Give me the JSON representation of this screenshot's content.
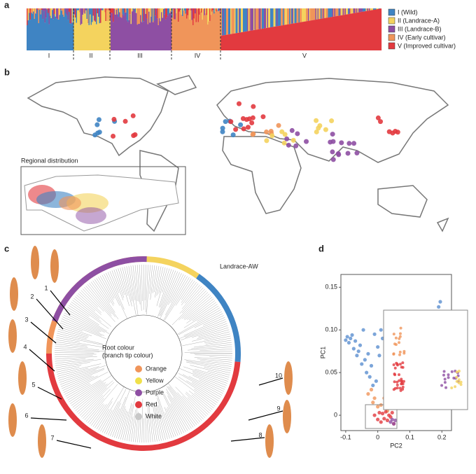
{
  "figure": {
    "a": {
      "label": "a",
      "groups": [
        "I",
        "II",
        "III",
        "IV",
        "V"
      ],
      "legend": [
        "I (Wild)",
        "II (Landrace-A)",
        "III (Landrace-B)",
        "IV (Early cultivar)",
        "V (Improved cultivar)"
      ],
      "colors": [
        "#3f84c3",
        "#f4d35e",
        "#8e4fa3",
        "#f0955a",
        "#e23a3f"
      ]
    },
    "b": {
      "label": "b",
      "inset_title": "Regional distribution"
    },
    "c": {
      "label": "c",
      "clade_label": "Landrace-AW",
      "legend_title": [
        "Root colour",
        "(branch tip colour)"
      ],
      "legend": [
        "Orange",
        "Yellow",
        "Purple",
        "Red",
        "White"
      ],
      "legend_colors": [
        "#f0955a",
        "#f0e04a",
        "#8e4fa3",
        "#e23a3f",
        "#c8c8c8"
      ],
      "markers": [
        "1",
        "2",
        "3",
        "4",
        "5",
        "6",
        "7",
        "8",
        "9",
        "10"
      ]
    },
    "d": {
      "label": "d"
    }
  },
  "chart_data": {
    "type": "scatter",
    "x_label": "PC2",
    "y_label": "PC1",
    "xlim": [
      -0.115,
      0.23
    ],
    "ylim": [
      -0.018,
      0.165
    ],
    "xticks": [
      -0.1,
      0,
      0.1,
      0.2
    ],
    "yticks": [
      0,
      0.05,
      {
        "value": 0.1,
        "label": "0.10"
      },
      0.15
    ],
    "series": [
      {
        "color": "#5b8fd0",
        "x": [
          -0.1,
          -0.095,
          -0.09,
          -0.085,
          -0.08,
          -0.075,
          -0.07,
          -0.065,
          -0.06,
          -0.055,
          -0.05,
          -0.045,
          -0.04,
          -0.035,
          -0.03,
          -0.025,
          -0.02,
          -0.015,
          -0.01,
          -0.005,
          0.0,
          0.005,
          0.01,
          0.015,
          0.19,
          0.195
        ],
        "values": [
          0.088,
          0.092,
          0.085,
          0.09,
          0.094,
          0.078,
          0.087,
          0.07,
          0.075,
          0.082,
          0.06,
          0.1,
          0.065,
          0.05,
          0.072,
          0.045,
          0.058,
          0.035,
          0.095,
          0.04,
          0.08,
          0.07,
          0.1,
          0.09,
          0.127,
          0.133
        ]
      },
      {
        "color": "#f0955a",
        "x": [
          -0.03,
          -0.02,
          -0.015,
          -0.01,
          0.0,
          0.01,
          0.02,
          0.03
        ],
        "values": [
          0.025,
          0.03,
          0.015,
          0.02,
          0.01,
          0.012,
          0.02,
          0.005
        ]
      },
      {
        "color": "#e23a3f",
        "x": [
          -0.01,
          0.0,
          0.005,
          0.01,
          0.015,
          0.02,
          0.025,
          0.03,
          0.035,
          0.04,
          0.045,
          0.05
        ],
        "values": [
          0.0,
          -0.005,
          0.003,
          -0.008,
          0.002,
          -0.004,
          0.004,
          -0.006,
          0.0,
          -0.002,
          0.003,
          -0.01
        ]
      },
      {
        "color": "#8e4fa3",
        "x": [
          0.04,
          0.045,
          0.05,
          0.055
        ],
        "values": [
          -0.008,
          -0.005,
          -0.01,
          -0.006
        ]
      }
    ]
  }
}
